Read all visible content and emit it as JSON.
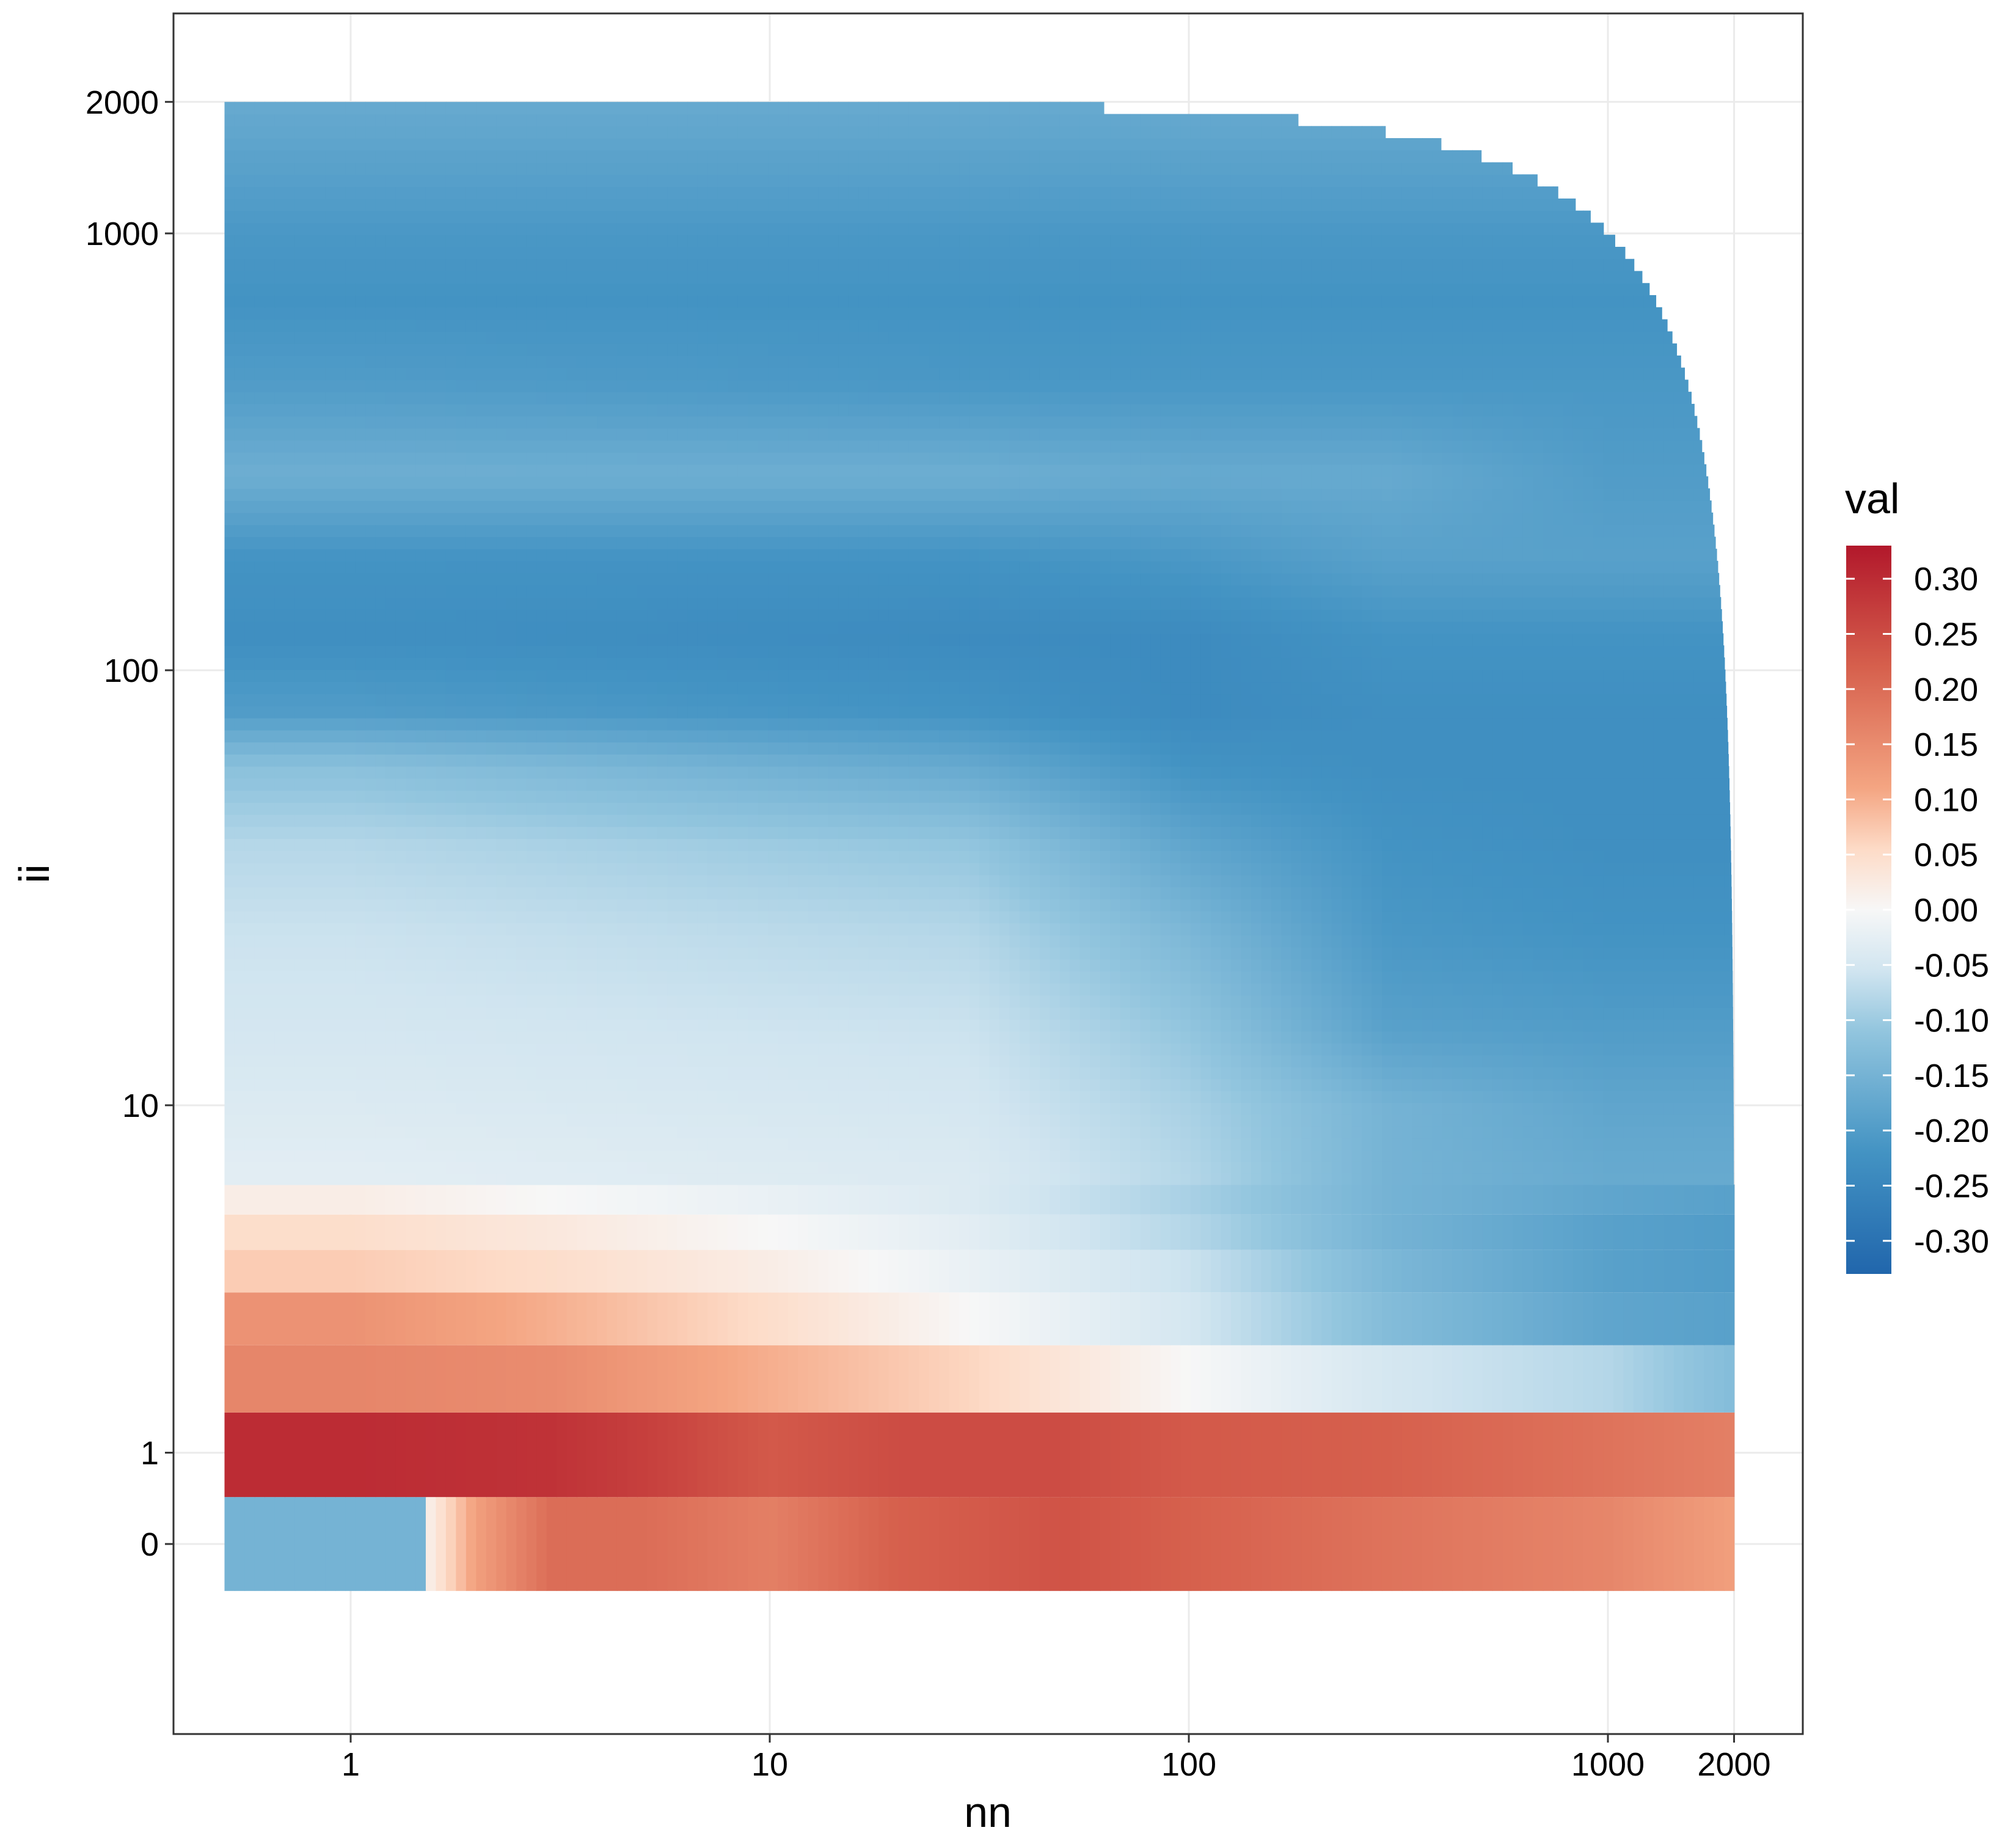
{
  "chart_data": {
    "type": "heatmap",
    "title": "",
    "xlabel": "nn",
    "ylabel": "ii",
    "x_scale": "log",
    "y_scale": "pseudo-log",
    "x_ticks": [
      1,
      10,
      100,
      1000,
      2000
    ],
    "x_tick_labels": [
      "1",
      "10",
      "100",
      "1000",
      "2000"
    ],
    "y_ticks": [
      0,
      1,
      10,
      100,
      1000,
      2000
    ],
    "y_tick_labels": [
      "0",
      "1",
      "10",
      "100",
      "1000",
      "2000"
    ],
    "x_range": [
      1,
      2000
    ],
    "y_range": [
      0,
      2000
    ],
    "domain_rule": "ii <= 2000 - nn",
    "grid": true,
    "legend": {
      "title": "val",
      "position": "right",
      "breaks": [
        0.3,
        0.25,
        0.2,
        0.15,
        0.1,
        0.05,
        0,
        -0.05,
        -0.1,
        -0.15,
        -0.2,
        -0.25,
        -0.3
      ],
      "labels": [
        "0.30",
        "0.25",
        "0.20",
        "0.15",
        "0.10",
        "0.05",
        "0.00",
        "-0.05",
        "-0.10",
        "-0.15",
        "-0.20",
        "-0.25",
        "-0.30"
      ],
      "limits": [
        -0.33,
        0.33
      ],
      "palette": "RdBu",
      "colors": {
        "high": "#b2182b",
        "mid": "#f7f7f7",
        "low": "#2166ac"
      }
    },
    "row_ii_0": {
      "nn": [
        1,
        2,
        3,
        5,
        10,
        20,
        50,
        100,
        300,
        1000,
        2000
      ],
      "val": [
        -0.15,
        0.12,
        0.2,
        0.2,
        0.17,
        0.22,
        0.24,
        0.22,
        0.19,
        0.16,
        0.12
      ]
    },
    "row_ii_1": {
      "nn": [
        1,
        3,
        5,
        10,
        20,
        50,
        100,
        300,
        1000,
        2000
      ],
      "val": [
        0.3,
        0.29,
        0.27,
        0.23,
        0.25,
        0.25,
        0.23,
        0.22,
        0.19,
        0.17
      ]
    },
    "row_ii_2": {
      "nn": [
        1,
        3,
        10,
        30,
        100,
        300,
        1000,
        2000
      ],
      "val": [
        0.16,
        0.15,
        0.1,
        0.06,
        0.0,
        -0.05,
        -0.08,
        -0.13
      ]
    },
    "row_ii_3": {
      "nn": [
        1,
        3,
        10,
        30,
        100,
        300,
        1000,
        2000
      ],
      "val": [
        0.14,
        0.1,
        0.05,
        0.0,
        -0.05,
        -0.13,
        -0.18,
        -0.19
      ]
    },
    "row_ii_4": {
      "nn": [
        1,
        3,
        10,
        30,
        100,
        300,
        1000,
        2000
      ],
      "val": [
        0.07,
        0.05,
        0.02,
        -0.02,
        -0.06,
        -0.14,
        -0.19,
        -0.2
      ]
    },
    "row_ii_5": {
      "nn": [
        1,
        3,
        10,
        30,
        100,
        300,
        1000,
        2000
      ],
      "val": [
        0.05,
        0.03,
        0.0,
        -0.03,
        -0.08,
        -0.15,
        -0.19,
        -0.2
      ]
    },
    "row_ii_6": {
      "nn": [
        1,
        3,
        10,
        30,
        100,
        300,
        1000,
        2000
      ],
      "val": [
        0.02,
        0.0,
        -0.02,
        -0.04,
        -0.09,
        -0.15,
        -0.18,
        -0.19
      ]
    },
    "upper_region": {
      "ii": [
        7,
        10,
        15,
        25,
        40,
        60,
        80,
        120,
        180,
        280,
        450,
        700,
        1000,
        1400,
        2000
      ],
      "nn": [
        1,
        30,
        100,
        300,
        1000,
        2000
      ],
      "val": [
        [
          -0.03,
          -0.04,
          -0.08,
          -0.15,
          -0.17,
          -0.17
        ],
        [
          -0.04,
          -0.05,
          -0.09,
          -0.15,
          -0.18,
          -0.18
        ],
        [
          -0.05,
          -0.06,
          -0.11,
          -0.19,
          -0.2,
          -0.2
        ],
        [
          -0.06,
          -0.08,
          -0.14,
          -0.21,
          -0.22,
          -0.22
        ],
        [
          -0.08,
          -0.11,
          -0.18,
          -0.22,
          -0.23,
          -0.23
        ],
        [
          -0.12,
          -0.17,
          -0.22,
          -0.23,
          -0.23,
          -0.23
        ],
        [
          -0.2,
          -0.22,
          -0.24,
          -0.23,
          -0.23,
          -0.23
        ],
        [
          -0.23,
          -0.24,
          -0.24,
          -0.22,
          -0.22,
          -0.22
        ],
        [
          -0.22,
          -0.22,
          -0.21,
          -0.19,
          -0.19,
          -0.19
        ],
        [
          -0.16,
          -0.16,
          -0.17,
          -0.17,
          -0.2,
          -0.2
        ],
        [
          -0.2,
          -0.21,
          -0.21,
          -0.21,
          -0.21,
          -0.21
        ],
        [
          -0.22,
          -0.22,
          -0.22,
          -0.22,
          -0.22,
          -0.22
        ],
        [
          -0.21,
          -0.21,
          -0.21,
          -0.21,
          -0.21,
          -0.21
        ],
        [
          -0.19,
          -0.19,
          -0.19,
          -0.19,
          -0.19,
          -0.19
        ],
        [
          -0.17,
          -0.17,
          -0.17,
          -0.17,
          -0.17,
          -0.17
        ]
      ]
    }
  }
}
